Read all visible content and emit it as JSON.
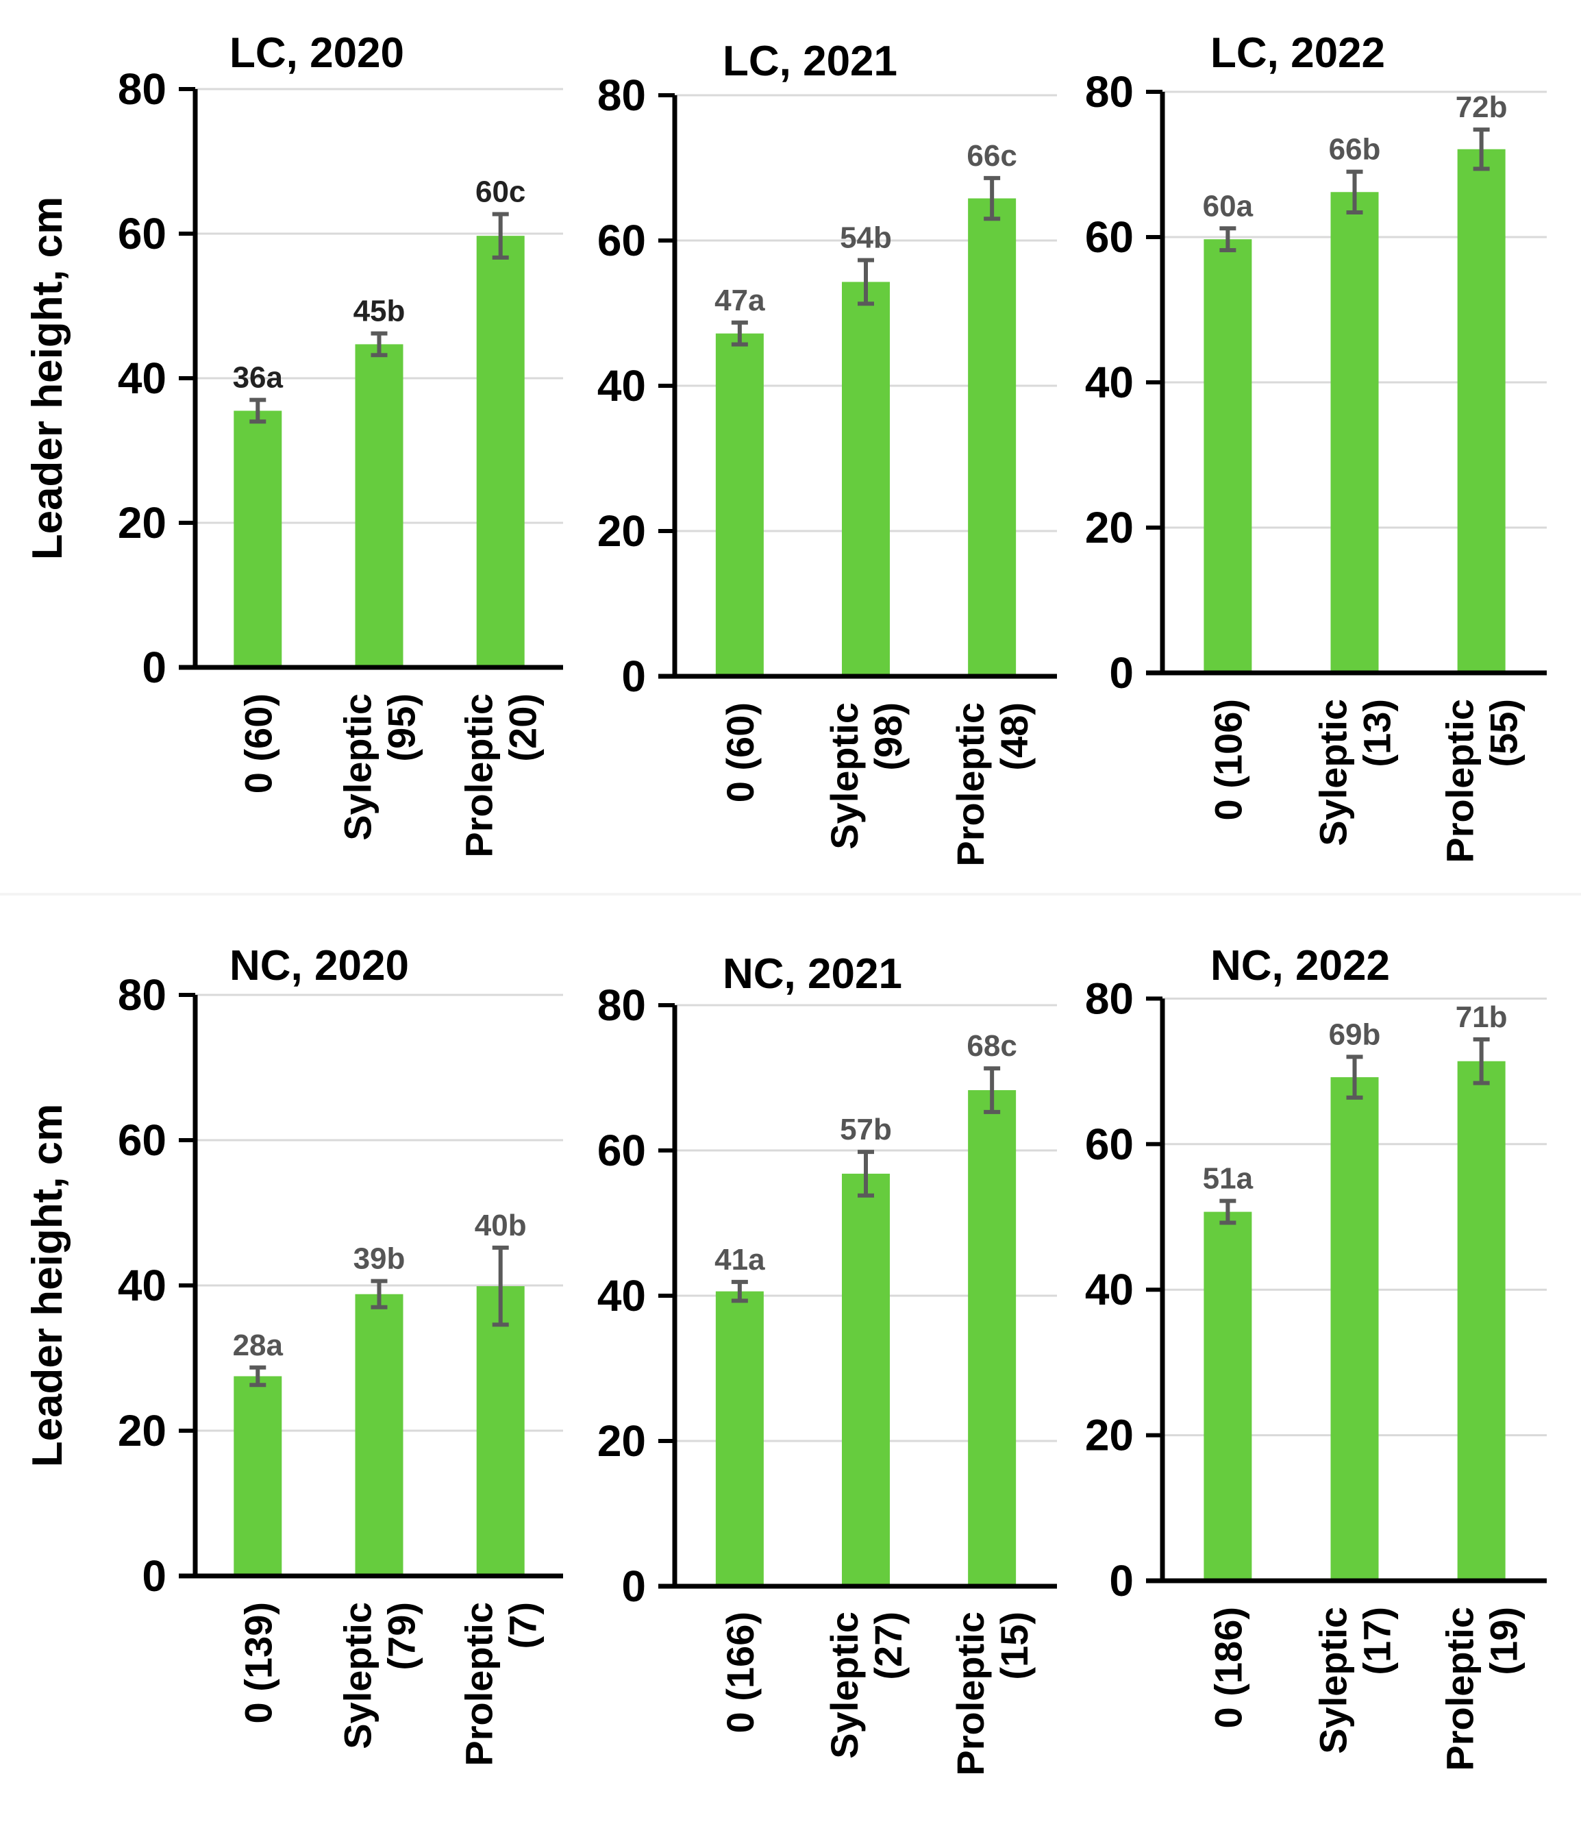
{
  "figure": {
    "ylabel": "Leader height, cm",
    "categories": [
      "0",
      "Syleptic",
      "Proleptic"
    ],
    "colors": {
      "bar": "#66cc3e",
      "error_bar": "#5a5a5a",
      "axis": "#000000",
      "grid": "#d9d9d9",
      "label_dark": "#222222",
      "label_grey": "#555555"
    }
  },
  "chart_data": [
    {
      "type": "bar",
      "title": "LC, 2020",
      "ylabel": "Leader height, cm",
      "ylim": [
        0,
        80
      ],
      "yticks": [
        0,
        20,
        40,
        60,
        80
      ],
      "categories": [
        "0 (60)",
        "Syleptic (95)",
        "Proleptic (20)"
      ],
      "category_names": [
        "0",
        "Syleptic",
        "Proleptic"
      ],
      "counts": [
        "(60)",
        "(95)",
        "(20)"
      ],
      "values": [
        35.5,
        44.7,
        59.7
      ],
      "errors": [
        1.5,
        1.5,
        3.0
      ],
      "labels": [
        "36a",
        "45b",
        "60c"
      ],
      "label_style": "dark"
    },
    {
      "type": "bar",
      "title": "LC, 2021",
      "ylabel": "",
      "ylim": [
        0,
        80
      ],
      "yticks": [
        0,
        20,
        40,
        60,
        80
      ],
      "categories": [
        "0 (60)",
        "Syleptic (98)",
        "Proleptic (48)"
      ],
      "category_names": [
        "0",
        "Syleptic",
        "Proleptic"
      ],
      "counts": [
        "(60)",
        "(98)",
        "(48)"
      ],
      "values": [
        47.2,
        54.3,
        65.8
      ],
      "errors": [
        1.5,
        3.0,
        2.8
      ],
      "labels": [
        "47a",
        "54b",
        "66c"
      ],
      "label_style": "grey"
    },
    {
      "type": "bar",
      "title": "LC, 2022",
      "ylabel": "",
      "ylim": [
        0,
        80
      ],
      "yticks": [
        0,
        20,
        40,
        60,
        80
      ],
      "categories": [
        "0 (106)",
        "Syleptic (13)",
        "Proleptic (55)"
      ],
      "category_names": [
        "0",
        "Syleptic",
        "Proleptic"
      ],
      "counts": [
        "(106)",
        "(13)",
        "(55)"
      ],
      "values": [
        59.7,
        66.2,
        72.1
      ],
      "errors": [
        1.5,
        2.8,
        2.7
      ],
      "labels": [
        "60a",
        "66b",
        "72b"
      ],
      "label_style": "grey"
    },
    {
      "type": "bar",
      "title": "NC, 2020",
      "ylabel": "Leader height, cm",
      "ylim": [
        0,
        80
      ],
      "yticks": [
        0,
        20,
        40,
        60,
        80
      ],
      "categories": [
        "0 (139)",
        "Syleptic (79)",
        "Proleptic (7)"
      ],
      "category_names": [
        "0",
        "Syleptic",
        "Proleptic"
      ],
      "counts": [
        "(139)",
        "(79)",
        "(7)"
      ],
      "values": [
        27.5,
        38.8,
        39.9
      ],
      "errors": [
        1.2,
        1.8,
        5.3
      ],
      "labels": [
        "28a",
        "39b",
        "40b"
      ],
      "label_style": "grey"
    },
    {
      "type": "bar",
      "title": "NC, 2021",
      "ylabel": "",
      "ylim": [
        0,
        80
      ],
      "yticks": [
        0,
        20,
        40,
        60,
        80
      ],
      "categories": [
        "0 (166)",
        "Syleptic (27)",
        "Proleptic (15)"
      ],
      "category_names": [
        "0",
        "Syleptic",
        "Proleptic"
      ],
      "counts": [
        "(166)",
        "(27)",
        "(15)"
      ],
      "values": [
        40.6,
        56.8,
        68.3
      ],
      "errors": [
        1.3,
        3.0,
        3.0
      ],
      "labels": [
        "41a",
        "57b",
        "68c"
      ],
      "label_style": "grey"
    },
    {
      "type": "bar",
      "title": "NC, 2022",
      "ylabel": "",
      "ylim": [
        0,
        80
      ],
      "yticks": [
        0,
        20,
        40,
        60,
        80
      ],
      "categories": [
        "0 (186)",
        "Syleptic (17)",
        "Proleptic (19)"
      ],
      "category_names": [
        "0",
        "Syleptic",
        "Proleptic"
      ],
      "counts": [
        "(186)",
        "(17)",
        "(19)"
      ],
      "values": [
        50.7,
        69.2,
        71.4
      ],
      "errors": [
        1.5,
        2.8,
        3.0
      ],
      "labels": [
        "51a",
        "69b",
        "71b"
      ],
      "label_style": "grey"
    }
  ]
}
